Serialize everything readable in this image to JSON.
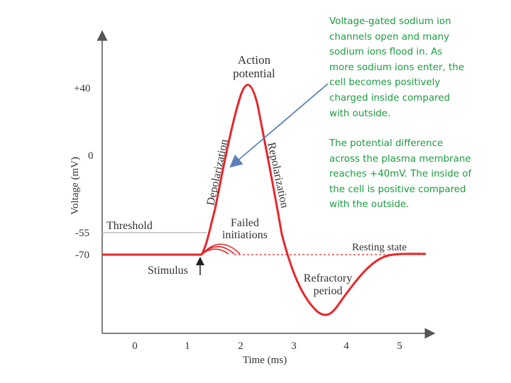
{
  "diagram": {
    "title": "",
    "axes": {
      "y_label": "Voltage (mV)",
      "y_ticks": [
        "+40",
        "0",
        "-55",
        "-70"
      ],
      "x_label": "Time (ms)",
      "x_ticks": [
        "0",
        "1",
        "2",
        "3",
        "4",
        "5"
      ]
    },
    "labels": {
      "action_potential": [
        "Action",
        "potential"
      ],
      "depolarization": "Depolarization",
      "repolarization": "Repolarization",
      "threshold": "Threshold",
      "failed_initiations": [
        "Failed",
        "initiations"
      ],
      "resting_state": "Resting state",
      "stimulus": "Stimulus",
      "refractory_period": [
        "Refractory",
        "period"
      ]
    },
    "colors": {
      "curve": "#e8262a",
      "threshold_line": "#bdbdbd",
      "arrow": "#5b82b8",
      "note_text": "#1a9c3e"
    }
  },
  "notes": {
    "note1": "Voltage-gated sodium ion\nchannels open and many\nsodium ions flood in.  As\nmore sodium ions enter, the\ncell becomes positively\ncharged inside compared\nwith outside.",
    "note2": "The potential difference\nacross the plasma membrane\nreaches +40mV.  The inside of\nthe cell is positive compared\nwith the outside."
  }
}
